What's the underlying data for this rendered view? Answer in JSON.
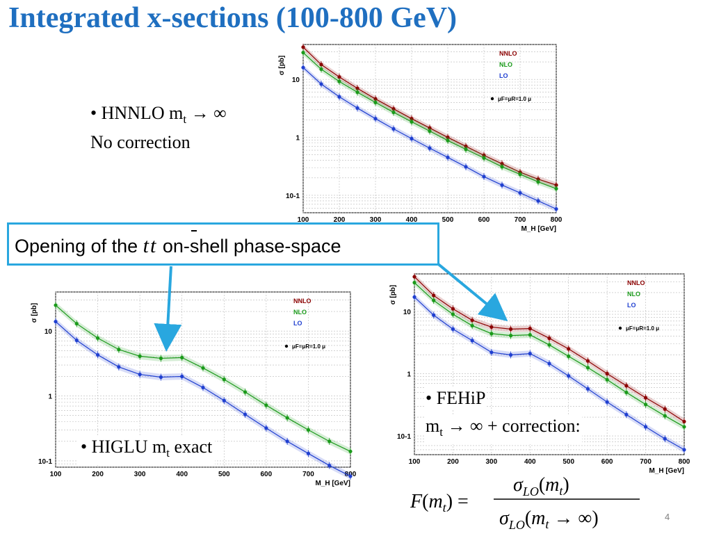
{
  "slide": {
    "title": "Integrated x-sections (100-800 GeV)",
    "page_number": "4",
    "callout": {
      "pre": "Opening of the ",
      "symbol": "tt",
      "post": " on-shell phase-space"
    },
    "hnnlo": {
      "bullet": "• HNNLO  m",
      "sub": "t",
      "arrow": "  → ∞",
      "line2": "No correction"
    },
    "higlu": {
      "bullet": "• HIGLU  m",
      "sub": "t",
      "rest": " exact"
    },
    "fehip": {
      "bullet": "• FEHiP",
      "m": "m",
      "sub": "t",
      "rest": "  → ∞ + correction:"
    },
    "formula": {
      "lhs": "F(m",
      "sub": "t",
      "lhs_end": ") =",
      "num": "σLO(mt)",
      "den": "σLO(mt → ∞)"
    },
    "colors": {
      "title": "#1f6fc0",
      "callout_border": "#29a7df",
      "arrow": "#29a7df",
      "nnlo": "#8b0000",
      "nlo": "#1a9a1a",
      "lo": "#1f3fd0"
    }
  },
  "chart_data": [
    {
      "type": "line",
      "ylabel": "σ [pb]",
      "xlabel": "M_H [GeV]",
      "log_y": true,
      "xlim": [
        100,
        800
      ],
      "ylim": [
        0.05,
        40
      ],
      "x_ticks": [
        100,
        200,
        300,
        400,
        500,
        600,
        700,
        800
      ],
      "y_ticks": [
        {
          "v": 10,
          "label": "10"
        },
        {
          "v": 1,
          "label": "1"
        },
        {
          "v": 0.1,
          "label": "10-1"
        }
      ],
      "legend": [
        "NNLO",
        "NLO",
        "LO"
      ],
      "scale_label": "μF=μR=1.0 μ",
      "grid": true,
      "x": [
        100,
        150,
        200,
        250,
        300,
        350,
        400,
        450,
        500,
        550,
        600,
        650,
        700,
        750,
        800
      ],
      "series": [
        {
          "name": "NNLO",
          "values": [
            36,
            18,
            11,
            7,
            4.6,
            3.1,
            2.1,
            1.45,
            1.0,
            0.7,
            0.49,
            0.35,
            0.25,
            0.19,
            0.15
          ]
        },
        {
          "name": "NLO",
          "values": [
            29,
            15,
            9.2,
            6,
            4,
            2.7,
            1.85,
            1.28,
            0.88,
            0.62,
            0.44,
            0.31,
            0.23,
            0.17,
            0.13
          ]
        },
        {
          "name": "LO",
          "values": [
            16,
            8.3,
            5,
            3.2,
            2.1,
            1.4,
            0.95,
            0.65,
            0.45,
            0.31,
            0.21,
            0.15,
            0.11,
            0.08,
            0.058
          ]
        }
      ]
    },
    {
      "type": "line",
      "ylabel": "σ [pb]",
      "xlabel": "M_H [GeV]",
      "log_y": true,
      "xlim": [
        100,
        800
      ],
      "ylim": [
        0.08,
        40
      ],
      "x_ticks": [
        100,
        200,
        300,
        400,
        500,
        600,
        700,
        800
      ],
      "y_ticks": [
        {
          "v": 10,
          "label": "10"
        },
        {
          "v": 1,
          "label": "1"
        },
        {
          "v": 0.1,
          "label": "10-1"
        }
      ],
      "legend": [
        "NNLO",
        "NLO",
        "LO"
      ],
      "scale_label": "μF=μR=1.0 μ",
      "grid": true,
      "x": [
        100,
        150,
        200,
        250,
        300,
        350,
        400,
        450,
        500,
        550,
        600,
        650,
        700,
        750,
        800
      ],
      "series": [
        {
          "name": "NLO",
          "values": [
            25,
            13,
            7.8,
            5.2,
            4.1,
            3.8,
            3.9,
            2.7,
            1.8,
            1.15,
            0.72,
            0.46,
            0.3,
            0.2,
            0.14
          ]
        },
        {
          "name": "LO",
          "values": [
            14,
            7.2,
            4.3,
            2.8,
            2.15,
            1.95,
            2.0,
            1.35,
            0.85,
            0.52,
            0.32,
            0.2,
            0.13,
            0.085,
            0.058
          ]
        }
      ]
    },
    {
      "type": "line",
      "ylabel": "σ [pb]",
      "xlabel": "M_H [GeV]",
      "log_y": true,
      "xlim": [
        100,
        800
      ],
      "ylim": [
        0.05,
        40
      ],
      "x_ticks": [
        100,
        200,
        300,
        400,
        500,
        600,
        700,
        800
      ],
      "y_ticks": [
        {
          "v": 10,
          "label": "10"
        },
        {
          "v": 1,
          "label": "1"
        },
        {
          "v": 0.1,
          "label": "10-1"
        }
      ],
      "legend": [
        "NNLO",
        "NLO",
        "LO"
      ],
      "scale_label": "μF=μR=1.0 μ",
      "grid": true,
      "x": [
        100,
        150,
        200,
        250,
        300,
        350,
        400,
        450,
        500,
        550,
        600,
        650,
        700,
        750,
        800
      ],
      "series": [
        {
          "name": "NNLO",
          "values": [
            36,
            18,
            11,
            7.2,
            5.6,
            5.2,
            5.3,
            3.7,
            2.5,
            1.6,
            1.0,
            0.64,
            0.41,
            0.27,
            0.17
          ]
        },
        {
          "name": "NLO",
          "values": [
            29,
            15,
            9,
            5.9,
            4.4,
            4.1,
            4.2,
            2.9,
            1.9,
            1.25,
            0.8,
            0.5,
            0.32,
            0.21,
            0.14
          ]
        },
        {
          "name": "LO",
          "values": [
            17,
            8.7,
            5.2,
            3.4,
            2.2,
            2.0,
            2.1,
            1.45,
            0.92,
            0.57,
            0.35,
            0.22,
            0.14,
            0.09,
            0.06
          ]
        }
      ]
    }
  ]
}
